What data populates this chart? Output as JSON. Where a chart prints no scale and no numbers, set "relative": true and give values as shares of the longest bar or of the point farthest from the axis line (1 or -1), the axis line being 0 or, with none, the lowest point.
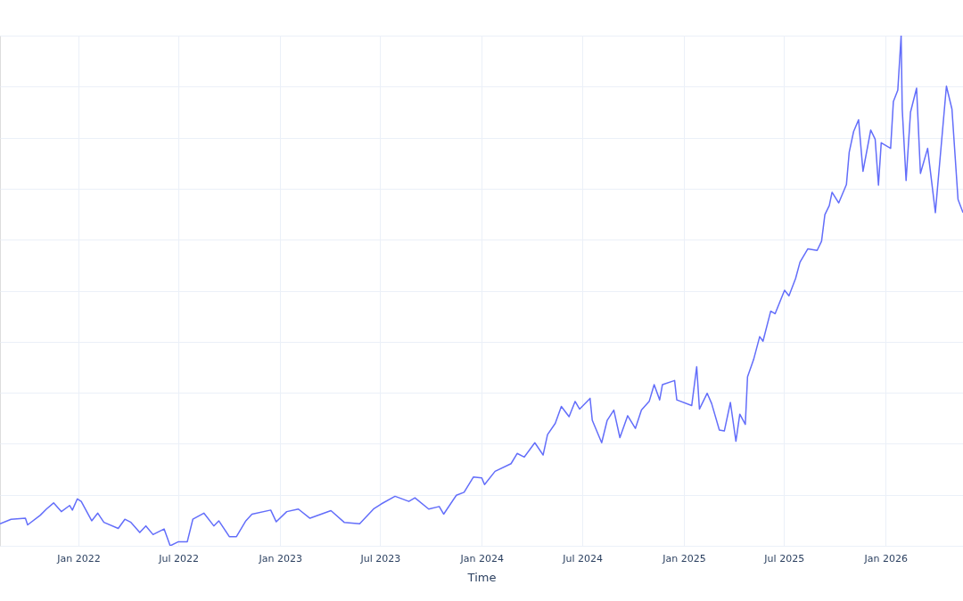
{
  "chart_data": {
    "type": "line",
    "xlabel": "Time",
    "relative": true,
    "grid": true,
    "line_style": "solid",
    "marker": "none",
    "xlim": [
      "2021-08-12",
      "2026-05-21"
    ],
    "xticks": [
      {
        "value": "2022-01",
        "label": "Jan 2022"
      },
      {
        "value": "2022-07",
        "label": "Jul 2022"
      },
      {
        "value": "2023-01",
        "label": "Jan 2023"
      },
      {
        "value": "2023-07",
        "label": "Jul 2023"
      },
      {
        "value": "2024-01",
        "label": "Jan 2024"
      },
      {
        "value": "2024-07",
        "label": "Jul 2024"
      },
      {
        "value": "2025-01",
        "label": "Jan 2025"
      },
      {
        "value": "2025-07",
        "label": "Jul 2025"
      },
      {
        "value": "2026-01",
        "label": "Jan 2026"
      }
    ],
    "x": [
      "2021-08-12",
      "2021-09-01",
      "2021-09-27",
      "2021-10-01",
      "2021-10-24",
      "2021-11-04",
      "2021-11-17",
      "2021-12-01",
      "2021-12-16",
      "2021-12-21",
      "2021-12-30",
      "2022-01-06",
      "2022-01-25",
      "2022-02-05",
      "2022-02-16",
      "2022-03-14",
      "2022-03-26",
      "2022-04-06",
      "2022-04-22",
      "2022-05-03",
      "2022-05-16",
      "2022-06-05",
      "2022-06-16",
      "2022-07-01",
      "2022-07-17",
      "2022-07-27",
      "2022-08-16",
      "2022-09-03",
      "2022-09-12",
      "2022-10-01",
      "2022-10-14",
      "2022-10-31",
      "2022-11-11",
      "2022-12-15",
      "2022-12-25",
      "2023-01-13",
      "2023-02-03",
      "2023-02-24",
      "2023-04-03",
      "2023-04-27",
      "2023-05-25",
      "2023-06-19",
      "2023-07-03",
      "2023-07-28",
      "2023-08-22",
      "2023-09-02",
      "2023-09-27",
      "2023-10-16",
      "2023-10-24",
      "2023-11-16",
      "2023-11-30",
      "2023-12-17",
      "2024-01-01",
      "2024-01-06",
      "2024-01-25",
      "2024-02-23",
      "2024-03-05",
      "2024-03-18",
      "2024-04-06",
      "2024-04-21",
      "2024-04-29",
      "2024-05-13",
      "2024-05-24",
      "2024-06-07",
      "2024-06-18",
      "2024-06-26",
      "2024-07-15",
      "2024-07-19",
      "2024-08-05",
      "2024-08-15",
      "2024-08-27",
      "2024-09-07",
      "2024-09-21",
      "2024-10-05",
      "2024-10-16",
      "2024-10-30",
      "2024-11-08",
      "2024-11-18",
      "2024-11-23",
      "2024-12-15",
      "2024-12-19",
      "2025-01-15",
      "2025-01-24",
      "2025-01-29",
      "2025-02-12",
      "2025-02-20",
      "2025-03-06",
      "2025-03-15",
      "2025-03-26",
      "2025-04-05",
      "2025-04-12",
      "2025-04-22",
      "2025-04-26",
      "2025-05-07",
      "2025-05-18",
      "2025-05-24",
      "2025-06-07",
      "2025-06-15",
      "2025-07-02",
      "2025-07-10",
      "2025-07-22",
      "2025-07-30",
      "2025-08-13",
      "2025-08-30",
      "2025-09-07",
      "2025-09-13",
      "2025-09-21",
      "2025-09-26",
      "2025-10-08",
      "2025-10-22",
      "2025-10-27",
      "2025-11-04",
      "2025-11-13",
      "2025-11-21",
      "2025-12-05",
      "2025-12-13",
      "2025-12-19",
      "2025-12-24",
      "2026-01-10",
      "2026-01-15",
      "2026-01-23",
      "2026-01-29",
      "2026-01-31",
      "2026-02-07",
      "2026-02-15",
      "2026-02-26",
      "2026-03-05",
      "2026-03-18",
      "2026-04-01",
      "2026-04-06",
      "2026-04-21",
      "2026-05-01",
      "2026-05-12",
      "2026-05-21"
    ],
    "series": [
      {
        "color": "#636efa",
        "values": [
          0.043,
          0.052,
          0.054,
          0.041,
          0.06,
          0.072,
          0.084,
          0.067,
          0.079,
          0.07,
          0.092,
          0.087,
          0.049,
          0.064,
          0.046,
          0.034,
          0.052,
          0.046,
          0.026,
          0.039,
          0.022,
          0.033,
          0.0,
          0.008,
          0.008,
          0.052,
          0.064,
          0.039,
          0.049,
          0.018,
          0.018,
          0.049,
          0.062,
          0.07,
          0.047,
          0.067,
          0.072,
          0.054,
          0.069,
          0.046,
          0.043,
          0.072,
          0.082,
          0.097,
          0.087,
          0.094,
          0.072,
          0.077,
          0.062,
          0.099,
          0.105,
          0.135,
          0.133,
          0.12,
          0.146,
          0.161,
          0.181,
          0.174,
          0.202,
          0.178,
          0.218,
          0.24,
          0.273,
          0.253,
          0.283,
          0.268,
          0.289,
          0.246,
          0.202,
          0.246,
          0.266,
          0.212,
          0.255,
          0.23,
          0.266,
          0.283,
          0.316,
          0.286,
          0.316,
          0.324,
          0.286,
          0.275,
          0.351,
          0.268,
          0.299,
          0.279,
          0.227,
          0.225,
          0.281,
          0.205,
          0.258,
          0.238,
          0.331,
          0.365,
          0.41,
          0.401,
          0.46,
          0.455,
          0.501,
          0.49,
          0.524,
          0.556,
          0.582,
          0.579,
          0.597,
          0.649,
          0.667,
          0.693,
          0.672,
          0.708,
          0.771,
          0.812,
          0.835,
          0.734,
          0.815,
          0.797,
          0.707,
          0.79,
          0.779,
          0.871,
          0.893,
          1.0,
          0.856,
          0.716,
          0.85,
          0.897,
          0.73,
          0.779,
          0.653,
          0.716,
          0.901,
          0.856,
          0.679,
          0.653
        ]
      }
    ]
  }
}
